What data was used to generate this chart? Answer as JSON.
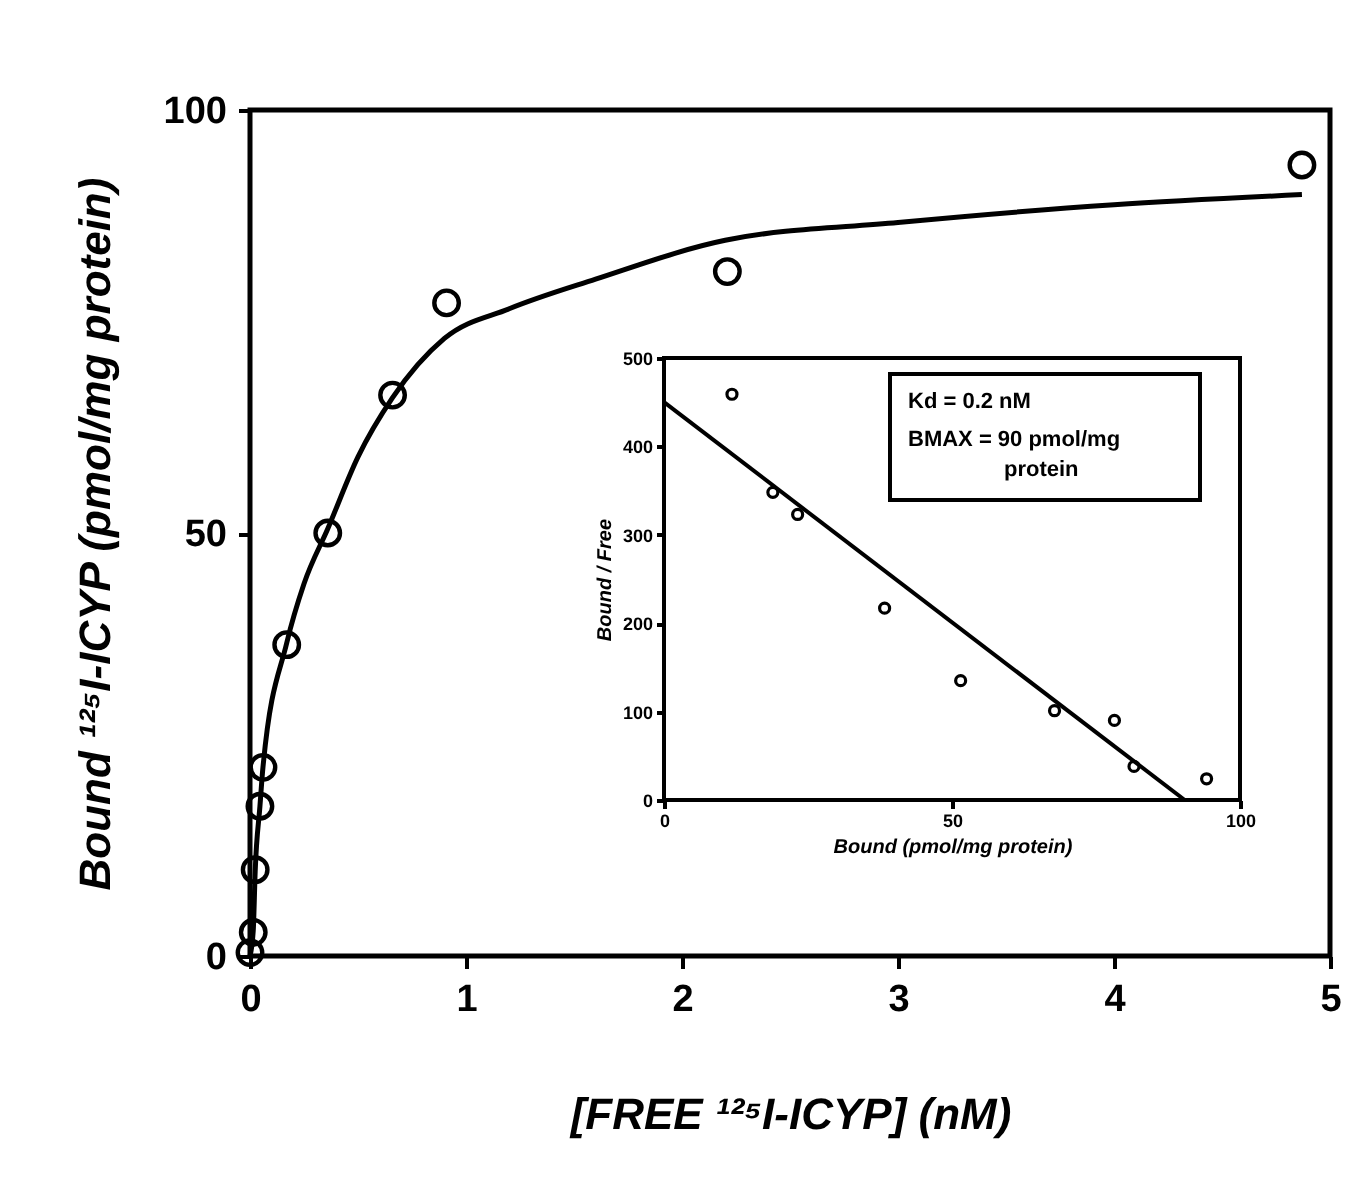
{
  "chart_data": [
    {
      "type": "scatter",
      "xlabel": "[FREE ¹²⁵I-ICYP] (nM)",
      "ylabel": "Bound ¹²⁵I-ICYP (pmol/mg protein)",
      "series": [
        {
          "color": "#000000",
          "x": [
            0,
            0.015,
            0.024,
            0.046,
            0.06,
            0.17,
            0.36,
            0.66,
            0.91,
            2.21,
            4.87
          ],
          "values": [
            0.4,
            2.8,
            10.2,
            17.7,
            22.3,
            36.8,
            50,
            66.3,
            77.2,
            80.9,
            93.5
          ]
        },
        {
          "type": "line",
          "marker": "none",
          "color": "#000000",
          "x": [
            0,
            0.015,
            0.024,
            0.046,
            0.06,
            0.17,
            0.25,
            0.36,
            0.5,
            0.66,
            0.9,
            1.2,
            1.6,
            2.2,
            3,
            4,
            4.87
          ],
          "values": [
            0,
            3,
            10,
            17.7,
            22.3,
            37,
            44,
            50.5,
            59,
            66,
            73,
            76.5,
            80,
            84.6,
            86.7,
            88.8,
            90
          ]
        }
      ],
      "marker": "circle",
      "xlim": [
        0,
        5
      ],
      "ylim": [
        0,
        100
      ],
      "xticks": [
        0,
        1,
        2,
        3,
        4,
        5
      ],
      "yticks": [
        0,
        50,
        100
      ],
      "grid": false
    },
    {
      "type": "scatter",
      "xlabel": "Bound (pmol/mg protein)",
      "ylabel": "Bound / Free",
      "series": [
        {
          "color": "#000000",
          "x": [
            11.8,
            18.9,
            23.2,
            38.3,
            51.5,
            67.8,
            78.2,
            81.6,
            94.2
          ],
          "values": [
            459,
            348,
            323,
            217,
            135,
            101,
            90,
            38,
            24
          ]
        },
        {
          "type": "line",
          "marker": "none",
          "color": "#000000",
          "x": [
            0,
            90.4
          ],
          "values": [
            450,
            0
          ]
        }
      ],
      "annotations": [
        "Kd = 0.2 nM",
        "BMAX = 90 pmol/mg protein"
      ],
      "marker": "circle",
      "xlim": [
        0,
        100
      ],
      "ylim": [
        0,
        500
      ],
      "xticks": [
        0,
        50,
        100
      ],
      "yticks": [
        0,
        100,
        200,
        300,
        400,
        500
      ],
      "grid": false
    }
  ]
}
